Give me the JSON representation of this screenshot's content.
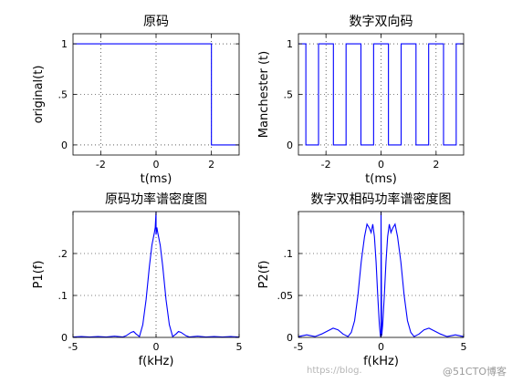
{
  "chart_data": [
    {
      "type": "line",
      "title": "原码",
      "xlabel": "t(ms)",
      "ylabel": "original(t)",
      "xlim": [
        -3,
        3
      ],
      "ylim": [
        -0.1,
        1.1
      ],
      "xticks": [
        -2,
        0,
        2
      ],
      "yticks": [
        0,
        0.5,
        1
      ],
      "grid": true,
      "color": "#0000ff",
      "series": [
        {
          "x": [
            -3,
            2,
            2,
            3
          ],
          "y": [
            1,
            1,
            0,
            0
          ]
        }
      ]
    },
    {
      "type": "line",
      "title": "数字双向码",
      "xlabel": "t(ms)",
      "ylabel": "Manchester (t)",
      "xlim": [
        -3,
        3
      ],
      "ylim": [
        -0.1,
        1.1
      ],
      "xticks": [
        -2,
        0,
        2
      ],
      "yticks": [
        0,
        0.5,
        1
      ],
      "grid": true,
      "color": "#0000ff",
      "series": [
        {
          "x": [
            -3,
            -2.73,
            -2.73,
            -2.27,
            -2.27,
            -1.73,
            -1.73,
            -1.27,
            -1.27,
            -0.73,
            -0.73,
            -0.27,
            -0.27,
            0.27,
            0.27,
            0.73,
            0.73,
            1.27,
            1.27,
            1.73,
            1.73,
            2.27,
            2.27,
            2.73,
            2.73,
            3
          ],
          "y": [
            1,
            1,
            0,
            0,
            1,
            1,
            0,
            0,
            1,
            1,
            0,
            0,
            1,
            1,
            0,
            0,
            1,
            1,
            0,
            0,
            1,
            1,
            0,
            0,
            1,
            1
          ]
        }
      ]
    },
    {
      "type": "line",
      "title": "原码功率谱密度图",
      "xlabel": "f(kHz)",
      "ylabel": "P1(f)",
      "xlim": [
        -5,
        5
      ],
      "ylim": [
        0,
        0.3
      ],
      "xticks": [
        -5,
        0,
        5
      ],
      "yticks": [
        0,
        0.1,
        0.2
      ],
      "grid": true,
      "color": "#0000ff",
      "series": [
        {
          "x": [
            -5,
            -4.5,
            -4,
            -3.5,
            -3,
            -2.5,
            -2,
            -1.8,
            -1.5,
            -1.35,
            -1.2,
            -1,
            -0.8,
            -0.6,
            -0.4,
            -0.25,
            -0.1,
            -0.05,
            0,
            0,
            0.05,
            0.1,
            0.25,
            0.4,
            0.6,
            0.8,
            1,
            1.2,
            1.35,
            1.5,
            1.8,
            2,
            2.5,
            3,
            3.5,
            4,
            4.5,
            5
          ],
          "y": [
            0.001,
            0.002,
            0.001,
            0.002,
            0.001,
            0.003,
            0.001,
            0.004,
            0.012,
            0.014,
            0.008,
            0.002,
            0.03,
            0.09,
            0.17,
            0.22,
            0.25,
            0.262,
            0.3,
            0.245,
            0.262,
            0.25,
            0.22,
            0.17,
            0.09,
            0.03,
            0.002,
            0.008,
            0.014,
            0.012,
            0.004,
            0.001,
            0.003,
            0.001,
            0.002,
            0.001,
            0.002,
            0.001
          ]
        }
      ]
    },
    {
      "type": "line",
      "title": "数字双相码功率谱密度图",
      "xlabel": "f(kHz)",
      "ylabel": "P2(f)",
      "xlim": [
        -5,
        5
      ],
      "ylim": [
        0,
        0.15
      ],
      "xticks": [
        -5,
        0,
        5
      ],
      "yticks": [
        0,
        0.05,
        0.1
      ],
      "grid": true,
      "color": "#0000ff",
      "series": [
        {
          "x": [
            -5,
            -4.5,
            -4,
            -3.6,
            -3.2,
            -2.9,
            -2.6,
            -2.3,
            -2,
            -1.8,
            -1.6,
            -1.4,
            -1.2,
            -1,
            -0.85,
            -0.7,
            -0.6,
            -0.5,
            -0.4,
            -0.3,
            -0.2,
            -0.1,
            -0.04,
            0,
            0,
            0.04,
            0.1,
            0.2,
            0.3,
            0.4,
            0.5,
            0.6,
            0.7,
            0.85,
            1,
            1.2,
            1.4,
            1.6,
            1.8,
            2,
            2.3,
            2.6,
            2.9,
            3.2,
            3.6,
            4,
            4.5,
            5
          ],
          "y": [
            0.001,
            0.003,
            0.001,
            0.004,
            0.008,
            0.011,
            0.009,
            0.004,
            0.001,
            0.006,
            0.02,
            0.05,
            0.09,
            0.12,
            0.135,
            0.13,
            0.125,
            0.135,
            0.12,
            0.09,
            0.05,
            0.015,
            0.002,
            0,
            0.15,
            0.002,
            0.015,
            0.05,
            0.09,
            0.12,
            0.135,
            0.125,
            0.13,
            0.135,
            0.12,
            0.09,
            0.05,
            0.02,
            0.006,
            0.001,
            0.004,
            0.009,
            0.011,
            0.008,
            0.004,
            0.001,
            0.003,
            0.001
          ]
        }
      ]
    }
  ],
  "watermark": {
    "url": "https://blog.",
    "site": "@51CTO博客"
  }
}
